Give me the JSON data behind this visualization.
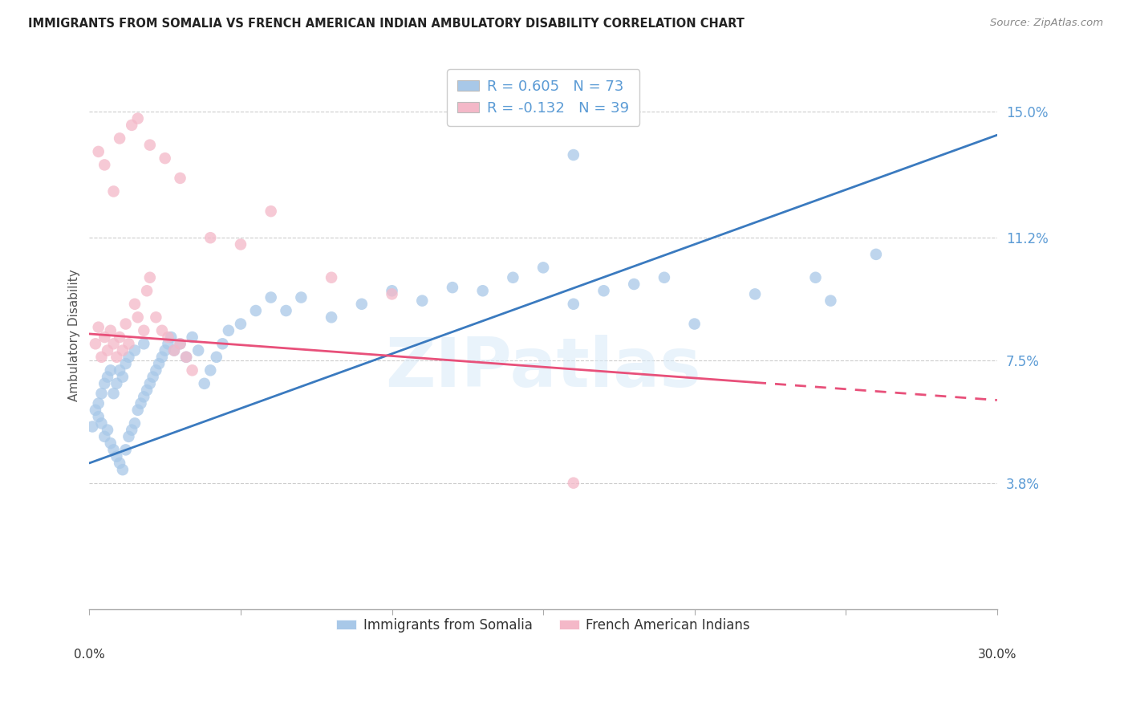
{
  "title": "IMMIGRANTS FROM SOMALIA VS FRENCH AMERICAN INDIAN AMBULATORY DISABILITY CORRELATION CHART",
  "source": "Source: ZipAtlas.com",
  "ylabel": "Ambulatory Disability",
  "yticks": [
    0.038,
    0.075,
    0.112,
    0.15
  ],
  "ytick_labels": [
    "3.8%",
    "7.5%",
    "11.2%",
    "15.0%"
  ],
  "xlim": [
    0.0,
    0.3
  ],
  "ylim": [
    0.0,
    0.165
  ],
  "legend_entry1": "R = 0.605   N = 73",
  "legend_entry2": "R = -0.132   N = 39",
  "legend_label1": "Immigrants from Somalia",
  "legend_label2": "French American Indians",
  "blue_color": "#a8c8e8",
  "pink_color": "#f4b8c8",
  "blue_line_color": "#3a7abf",
  "pink_line_color": "#e8507a",
  "watermark": "ZIPatlas",
  "title_color": "#222222",
  "source_color": "#888888",
  "tick_color": "#5b9bd5",
  "grid_color": "#cccccc",
  "blue_line_x0": 0.0,
  "blue_line_y0": 0.044,
  "blue_line_x1": 0.3,
  "blue_line_y1": 0.143,
  "pink_line_x0": 0.0,
  "pink_line_y0": 0.083,
  "pink_line_x1": 0.3,
  "pink_line_y1": 0.063,
  "pink_line_solid_end": 0.22,
  "blue_scatter_x": [
    0.001,
    0.002,
    0.003,
    0.003,
    0.004,
    0.004,
    0.005,
    0.005,
    0.006,
    0.006,
    0.007,
    0.007,
    0.008,
    0.008,
    0.009,
    0.009,
    0.01,
    0.01,
    0.011,
    0.011,
    0.012,
    0.012,
    0.013,
    0.013,
    0.014,
    0.015,
    0.015,
    0.016,
    0.017,
    0.018,
    0.018,
    0.019,
    0.02,
    0.021,
    0.022,
    0.023,
    0.024,
    0.025,
    0.026,
    0.027,
    0.028,
    0.03,
    0.032,
    0.034,
    0.036,
    0.038,
    0.04,
    0.042,
    0.044,
    0.046,
    0.05,
    0.055,
    0.06,
    0.065,
    0.07,
    0.08,
    0.09,
    0.1,
    0.11,
    0.12,
    0.13,
    0.14,
    0.15,
    0.16,
    0.17,
    0.18,
    0.19,
    0.2,
    0.22,
    0.24,
    0.26,
    0.245,
    0.16
  ],
  "blue_scatter_y": [
    0.055,
    0.06,
    0.058,
    0.062,
    0.056,
    0.065,
    0.052,
    0.068,
    0.054,
    0.07,
    0.05,
    0.072,
    0.048,
    0.065,
    0.046,
    0.068,
    0.044,
    0.072,
    0.042,
    0.07,
    0.048,
    0.074,
    0.052,
    0.076,
    0.054,
    0.056,
    0.078,
    0.06,
    0.062,
    0.064,
    0.08,
    0.066,
    0.068,
    0.07,
    0.072,
    0.074,
    0.076,
    0.078,
    0.08,
    0.082,
    0.078,
    0.08,
    0.076,
    0.082,
    0.078,
    0.068,
    0.072,
    0.076,
    0.08,
    0.084,
    0.086,
    0.09,
    0.094,
    0.09,
    0.094,
    0.088,
    0.092,
    0.096,
    0.093,
    0.097,
    0.096,
    0.1,
    0.103,
    0.092,
    0.096,
    0.098,
    0.1,
    0.086,
    0.095,
    0.1,
    0.107,
    0.093,
    0.137
  ],
  "pink_scatter_x": [
    0.002,
    0.003,
    0.004,
    0.005,
    0.006,
    0.007,
    0.008,
    0.009,
    0.01,
    0.011,
    0.012,
    0.013,
    0.015,
    0.016,
    0.018,
    0.019,
    0.02,
    0.022,
    0.024,
    0.026,
    0.028,
    0.03,
    0.032,
    0.034,
    0.04,
    0.05,
    0.06,
    0.08,
    0.1,
    0.003,
    0.005,
    0.008,
    0.01,
    0.014,
    0.016,
    0.02,
    0.025,
    0.03,
    0.16
  ],
  "pink_scatter_y": [
    0.08,
    0.085,
    0.076,
    0.082,
    0.078,
    0.084,
    0.08,
    0.076,
    0.082,
    0.078,
    0.086,
    0.08,
    0.092,
    0.088,
    0.084,
    0.096,
    0.1,
    0.088,
    0.084,
    0.082,
    0.078,
    0.08,
    0.076,
    0.072,
    0.112,
    0.11,
    0.12,
    0.1,
    0.095,
    0.138,
    0.134,
    0.126,
    0.142,
    0.146,
    0.148,
    0.14,
    0.136,
    0.13,
    0.038
  ]
}
